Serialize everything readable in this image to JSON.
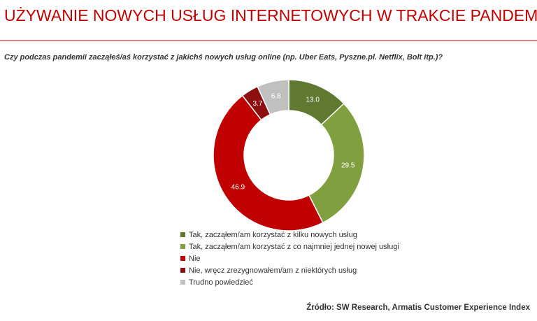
{
  "chart_data": {
    "type": "donut",
    "title": "UŻYWANIE NOWYCH USŁUG INTERNETOWYCH W TRAKCIE PANDEMII",
    "subtitle": "Czy podczas pandemii zacząłeś/aś korzystać z jakichś nowych usług online (np. Uber Eats, Pyszne.pl. Netflix, Bolt itp.)?",
    "categories": [
      "Tak, zacząłem/am korzystać z kilku nowych usług",
      "Tak, zacząłem/am korzystać z co najmniej jednej nowej usługi",
      "Nie",
      "Nie, wręcz zrezygnowałem/am z niektórych usług",
      "Trudno powiedzieć"
    ],
    "values": [
      13.0,
      29.5,
      46.9,
      3.7,
      6.8
    ],
    "value_labels": [
      "13.0",
      "29.5",
      "46.9",
      "3.7",
      "6.8"
    ],
    "colors": [
      "#5f7a30",
      "#80a040",
      "#c00000",
      "#8e0f0f",
      "#c0c0c0"
    ],
    "source": "Źródło: SW Research, Armatis Customer Experience Index"
  }
}
